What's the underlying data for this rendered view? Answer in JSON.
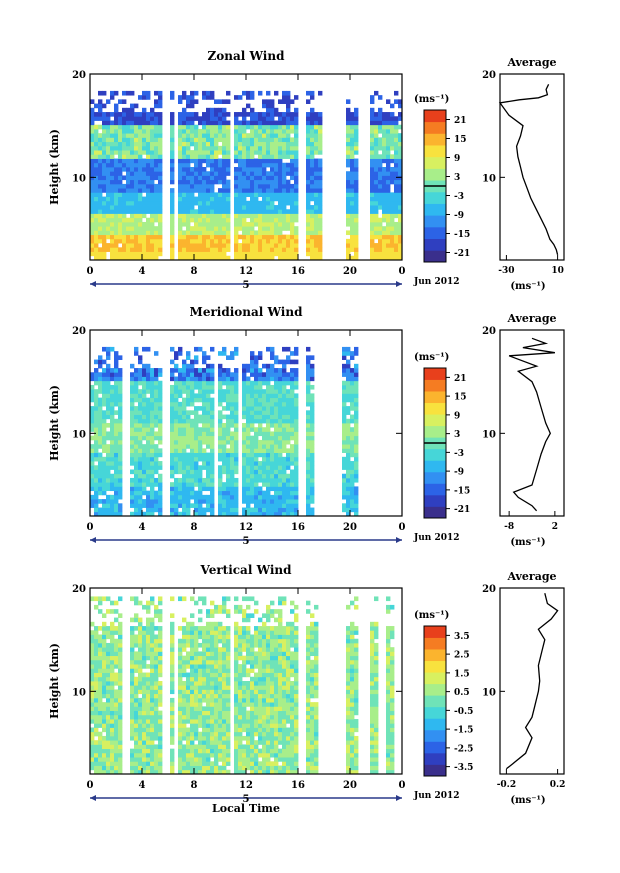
{
  "chart_data": [
    {
      "type": "heatmap",
      "title": "Zonal Wind",
      "ylabel": "Height (km)",
      "xlabel": "",
      "xlim": [
        0,
        24
      ],
      "ylim": [
        2,
        20
      ],
      "x_ticks": [
        "0",
        "4",
        "8",
        "12",
        "16",
        "20",
        "0"
      ],
      "y_ticks": [
        "20",
        "10"
      ],
      "date_marker": "5",
      "date_label": "Jun 2012",
      "colorbar": {
        "unit": "(ms⁻¹)",
        "ticks": [
          "21",
          "15",
          "9",
          "3",
          "-3",
          "-9",
          "-15",
          "-21"
        ],
        "range": [
          -24,
          24
        ],
        "contour": 0
      },
      "gaps": [
        [
          5.6,
          6.2
        ],
        [
          6.5,
          6.8
        ],
        [
          10.8,
          11.2
        ],
        [
          15.9,
          16.6
        ],
        [
          17.9,
          19.7
        ],
        [
          20.6,
          21.4
        ]
      ],
      "profile": {
        "title": "Average",
        "xlabel": "(ms⁻¹)",
        "x_ticks": [
          "-30",
          "10"
        ],
        "y_ticks": [
          "20",
          "10"
        ],
        "xlim": [
          -35,
          15
        ],
        "ylim": [
          2,
          20
        ],
        "points": [
          [
            10,
            2.5
          ],
          [
            9,
            3
          ],
          [
            7,
            3.5
          ],
          [
            4,
            4
          ],
          [
            1,
            5
          ],
          [
            -3,
            6
          ],
          [
            -7,
            7
          ],
          [
            -11,
            8
          ],
          [
            -14,
            9
          ],
          [
            -17,
            10
          ],
          [
            -19,
            11
          ],
          [
            -21,
            12
          ],
          [
            -22,
            13
          ],
          [
            -19,
            14
          ],
          [
            -17,
            15
          ],
          [
            -28,
            16
          ],
          [
            -35,
            17.2
          ],
          [
            -20,
            17.5
          ],
          [
            -5,
            17.7
          ],
          [
            2,
            18
          ],
          [
            1,
            18.5
          ],
          [
            3,
            19
          ]
        ]
      }
    },
    {
      "type": "heatmap",
      "title": "Meridional Wind",
      "ylabel": "Height (km)",
      "xlabel": "",
      "xlim": [
        0,
        24
      ],
      "ylim": [
        2,
        20
      ],
      "x_ticks": [
        "0",
        "4",
        "8",
        "12",
        "16",
        "20",
        "0"
      ],
      "y_ticks": [
        "20",
        "10"
      ],
      "date_marker": "5",
      "date_label": "Jun 2012",
      "colorbar": {
        "unit": "(ms⁻¹)",
        "ticks": [
          "21",
          "15",
          "9",
          "3",
          "-3",
          "-9",
          "-15",
          "-21"
        ],
        "range": [
          -24,
          24
        ],
        "contour": 0
      },
      "gaps": [
        [
          2.4,
          3.2
        ],
        [
          5.6,
          6.2
        ],
        [
          9.6,
          9.9
        ],
        [
          11.4,
          11.8
        ],
        [
          15.9,
          16.6
        ],
        [
          17.2,
          19.3
        ],
        [
          20.5,
          24
        ]
      ],
      "profile": {
        "title": "Average",
        "xlabel": "(ms⁻¹)",
        "x_ticks": [
          "-8",
          "2"
        ],
        "y_ticks": [
          "20",
          "10"
        ],
        "xlim": [
          -10,
          4
        ],
        "ylim": [
          2,
          20
        ],
        "points": [
          [
            -2,
            2.5
          ],
          [
            -3,
            3
          ],
          [
            -6,
            3.8
          ],
          [
            -7,
            4.3
          ],
          [
            -3,
            5
          ],
          [
            -2,
            6.5
          ],
          [
            -1,
            8
          ],
          [
            0,
            9.2
          ],
          [
            1,
            10
          ],
          [
            0,
            11
          ],
          [
            -1,
            12.5
          ],
          [
            -2,
            14
          ],
          [
            -3,
            15
          ],
          [
            -6,
            16
          ],
          [
            -2,
            16.5
          ],
          [
            -8,
            17.5
          ],
          [
            2,
            17.8
          ],
          [
            -5,
            18.3
          ],
          [
            0,
            18.7
          ],
          [
            -3,
            19.2
          ]
        ]
      }
    },
    {
      "type": "heatmap",
      "title": "Vertical Wind",
      "ylabel": "Height (km)",
      "xlabel": "Local Time",
      "xlim": [
        0,
        24
      ],
      "ylim": [
        2,
        20
      ],
      "x_ticks": [
        "0",
        "4",
        "8",
        "12",
        "16",
        "20",
        "0"
      ],
      "y_ticks": [
        "20",
        "10"
      ],
      "date_marker": "5",
      "date_label": "Jun 2012",
      "colorbar": {
        "unit": "(ms⁻¹)",
        "ticks": [
          "3.5",
          "2.5",
          "1.5",
          "0.5",
          "-0.5",
          "-1.5",
          "-2.5",
          "-3.5"
        ],
        "range": [
          -4,
          4
        ]
      },
      "gaps": [
        [
          2.4,
          3.2
        ],
        [
          5.5,
          6.2
        ],
        [
          6.5,
          6.8
        ],
        [
          10.8,
          11.2
        ],
        [
          15.9,
          16.6
        ],
        [
          17.5,
          19.7
        ],
        [
          20.5,
          21.4
        ],
        [
          22.3,
          22.8
        ],
        [
          23.4,
          24
        ]
      ],
      "profile": {
        "title": "Average",
        "xlabel": "(ms⁻¹)",
        "x_ticks": [
          "-0.2",
          "0.2"
        ],
        "y_ticks": [
          "20",
          "10"
        ],
        "xlim": [
          -0.25,
          0.25
        ],
        "ylim": [
          2,
          20
        ],
        "points": [
          [
            -0.2,
            2.5
          ],
          [
            -0.15,
            3
          ],
          [
            -0.05,
            4
          ],
          [
            0.0,
            5.5
          ],
          [
            -0.05,
            6.5
          ],
          [
            0.0,
            7.5
          ],
          [
            0.02,
            8.5
          ],
          [
            0.05,
            10
          ],
          [
            0.06,
            11
          ],
          [
            0.05,
            12.5
          ],
          [
            0.08,
            14
          ],
          [
            0.1,
            15
          ],
          [
            0.05,
            16
          ],
          [
            0.15,
            17
          ],
          [
            0.2,
            17.8
          ],
          [
            0.12,
            18.5
          ],
          [
            0.1,
            19.5
          ]
        ]
      }
    }
  ]
}
